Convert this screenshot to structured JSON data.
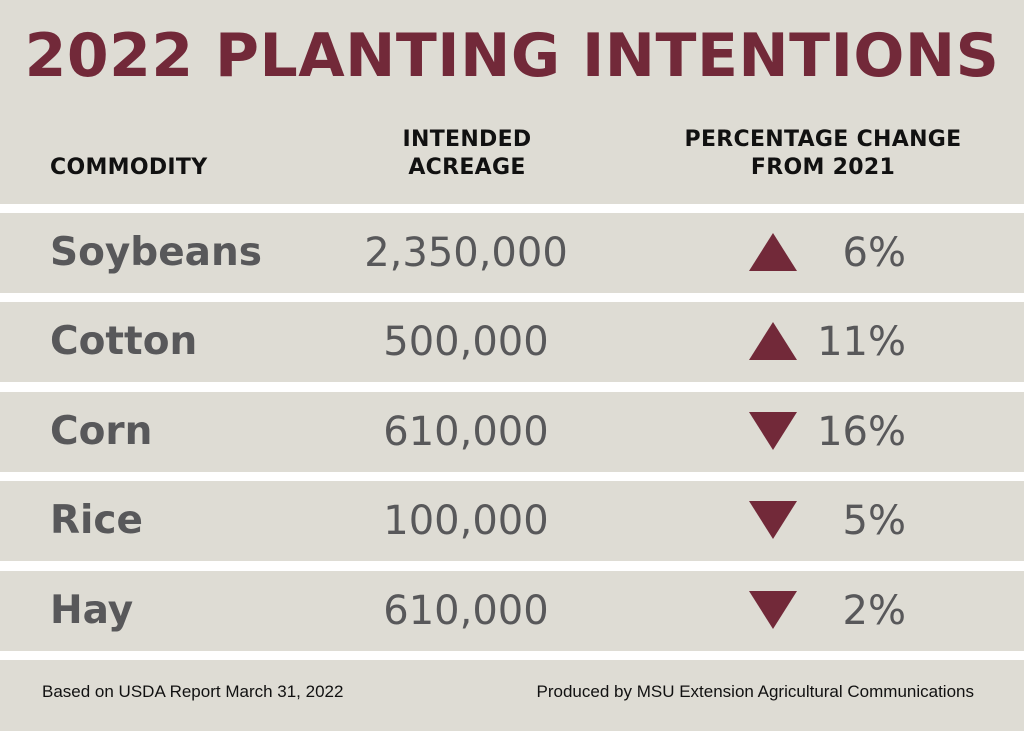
{
  "title": "2022 PLANTING INTENTIONS",
  "columns": {
    "commodity": [
      "COMMODITY"
    ],
    "acreage": [
      "INTENDED",
      "ACREAGE"
    ],
    "change": [
      "PERCENTAGE CHANGE",
      "FROM 2021"
    ]
  },
  "rows": [
    {
      "commodity": "Soybeans",
      "acreage": "2,350,000",
      "direction": "up",
      "change": "6%"
    },
    {
      "commodity": "Cotton",
      "acreage": "500,000",
      "direction": "up",
      "change": "11%"
    },
    {
      "commodity": "Corn",
      "acreage": "610,000",
      "direction": "down",
      "change": "16%"
    },
    {
      "commodity": "Rice",
      "acreage": "100,000",
      "direction": "down",
      "change": "5%"
    },
    {
      "commodity": "Hay",
      "acreage": "610,000",
      "direction": "down",
      "change": "2%"
    }
  ],
  "footer": {
    "source": "Based on USDA Report March 31, 2022",
    "credit": "Produced by MSU Extension Agricultural Communications"
  },
  "colors": {
    "accent": "#722939",
    "band": "#dedcd4",
    "text": "#58585a"
  }
}
